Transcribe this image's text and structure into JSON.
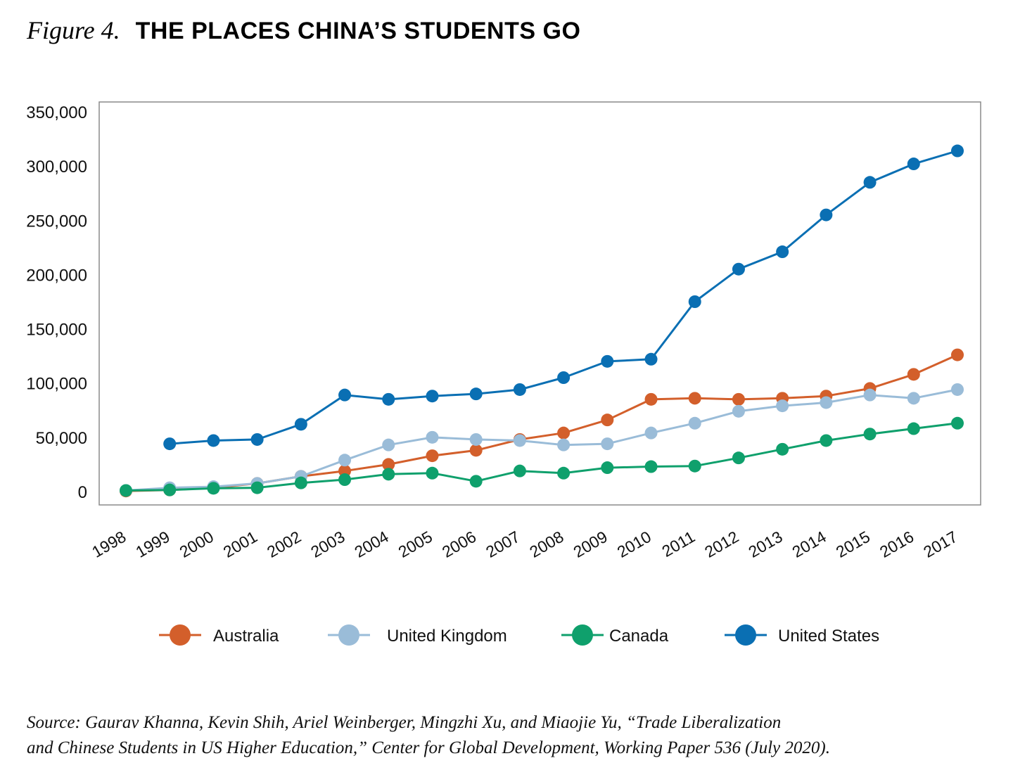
{
  "figure": {
    "label": "Figure 4.",
    "title": "THE PLACES CHINA’S STUDENTS GO"
  },
  "source": {
    "line1": "Source: Gaurav Khanna, Kevin Shih, Ariel Weinberger, Mingzhi Xu, and Miaojie Yu, “Trade Liberalization",
    "line2": "and Chinese Students in US Higher Education,” Center for Global Development, Working Paper 536 (July 2020)."
  },
  "chart_data": {
    "type": "line",
    "title": "",
    "xlabel": "",
    "ylabel": "",
    "ylim": [
      0,
      350000
    ],
    "yticks": [
      0,
      50000,
      100000,
      150000,
      200000,
      250000,
      300000,
      350000
    ],
    "ytick_labels": [
      "0",
      "50,000",
      "100,000",
      "150,000",
      "200,000",
      "250,000",
      "300,000",
      "350,000"
    ],
    "categories": [
      "1998",
      "1999",
      "2000",
      "2001",
      "2002",
      "2003",
      "2004",
      "2005",
      "2006",
      "2007",
      "2008",
      "2009",
      "2010",
      "2011",
      "2012",
      "2013",
      "2014",
      "2015",
      "2016",
      "2017"
    ],
    "grid": false,
    "legend_position": "bottom",
    "series": [
      {
        "name": "Australia",
        "color": "#D35F2B",
        "values": [
          500,
          1500,
          3500,
          7500,
          14000,
          19000,
          25000,
          33000,
          38000,
          48000,
          54000,
          66000,
          85000,
          86000,
          85000,
          86000,
          88000,
          95000,
          108000,
          126000
        ]
      },
      {
        "name": "United Kingdom",
        "color": "#9ABCD8",
        "values": [
          1000,
          3500,
          4500,
          7500,
          14000,
          29000,
          43000,
          50000,
          48000,
          47000,
          43000,
          44000,
          54000,
          63000,
          74000,
          79000,
          82000,
          89000,
          86000,
          94000
        ]
      },
      {
        "name": "Canada",
        "color": "#0FA06C",
        "values": [
          1000,
          1500,
          3000,
          3500,
          8000,
          11000,
          16000,
          17000,
          9500,
          19000,
          17000,
          22000,
          23000,
          23500,
          31000,
          39000,
          47000,
          53000,
          58000,
          63000
        ]
      },
      {
        "name": "United States",
        "color": "#0A6FB3",
        "values": [
          null,
          44000,
          47000,
          48000,
          62000,
          89000,
          85000,
          88000,
          90000,
          94000,
          105000,
          120000,
          122000,
          175000,
          205000,
          221000,
          255000,
          285000,
          302000,
          314000
        ]
      }
    ]
  }
}
